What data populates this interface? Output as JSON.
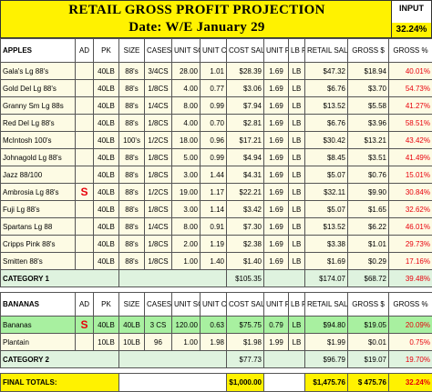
{
  "title": "RETAIL GROSS PROFIT PROJECTION",
  "date_line": "Date: W/E  January 29",
  "input": {
    "label": "INPUT",
    "value": "32.24%"
  },
  "columns": {
    "ad": "AD",
    "pk": "PK",
    "size": "SIZE",
    "cases": "CASES $1000",
    "unit_sold": "UNIT SOLD",
    "unit_cost": "UNIT COST",
    "cost_sales": "COST SALES",
    "unit_ret": "UNIT RET",
    "lb_ret": "LB RET",
    "retail_sales": "RETAIL SALES",
    "gross_dollar": "GROSS $",
    "gross_pct": "GROSS %"
  },
  "apples": {
    "section_label": "APPLES",
    "rows": [
      {
        "item": "Gala's Lg 88's",
        "ad": "",
        "pk": "40LB",
        "size": "88's",
        "cases": "3/4CS",
        "unit_sold": "28.00",
        "unit_cost": "1.01",
        "cost_sales": "$28.39",
        "unit_ret": "1.69",
        "lb_ret": "LB",
        "retail": "$47.32",
        "gross_d": "$18.94",
        "gross_p": "40.01%"
      },
      {
        "item": "Gold Del Lg 88's",
        "ad": "",
        "pk": "40LB",
        "size": "88's",
        "cases": "1/8CS",
        "unit_sold": "4.00",
        "unit_cost": "0.77",
        "cost_sales": "$3.06",
        "unit_ret": "1.69",
        "lb_ret": "LB",
        "retail": "$6.76",
        "gross_d": "$3.70",
        "gross_p": "54.73%"
      },
      {
        "item": "Granny Sm Lg 88s",
        "ad": "",
        "pk": "40LB",
        "size": "88's",
        "cases": "1/4CS",
        "unit_sold": "8.00",
        "unit_cost": "0.99",
        "cost_sales": "$7.94",
        "unit_ret": "1.69",
        "lb_ret": "LB",
        "retail": "$13.52",
        "gross_d": "$5.58",
        "gross_p": "41.27%"
      },
      {
        "item": "Red Del Lg 88's",
        "ad": "",
        "pk": "40LB",
        "size": "88's",
        "cases": "1/8CS",
        "unit_sold": "4.00",
        "unit_cost": "0.70",
        "cost_sales": "$2.81",
        "unit_ret": "1.69",
        "lb_ret": "LB",
        "retail": "$6.76",
        "gross_d": "$3.96",
        "gross_p": "58.51%"
      },
      {
        "item": "McIntosh 100's",
        "ad": "",
        "pk": "40LB",
        "size": "100's",
        "cases": "1/2CS",
        "unit_sold": "18.00",
        "unit_cost": "0.96",
        "cost_sales": "$17.21",
        "unit_ret": "1.69",
        "lb_ret": "LB",
        "retail": "$30.42",
        "gross_d": "$13.21",
        "gross_p": "43.42%"
      },
      {
        "item": "Johnagold Lg 88's",
        "ad": "",
        "pk": "40LB",
        "size": "88's",
        "cases": "1/8CS",
        "unit_sold": "5.00",
        "unit_cost": "0.99",
        "cost_sales": "$4.94",
        "unit_ret": "1.69",
        "lb_ret": "LB",
        "retail": "$8.45",
        "gross_d": "$3.51",
        "gross_p": "41.49%"
      },
      {
        "item": "Jazz 88/100",
        "ad": "",
        "pk": "40LB",
        "size": "88's",
        "cases": "1/8CS",
        "unit_sold": "3.00",
        "unit_cost": "1.44",
        "cost_sales": "$4.31",
        "unit_ret": "1.69",
        "lb_ret": "LB",
        "retail": "$5.07",
        "gross_d": "$0.76",
        "gross_p": "15.01%"
      },
      {
        "item": "Ambrosia Lg  88's",
        "ad": "S",
        "pk": "40LB",
        "size": "88's",
        "cases": "1/2CS",
        "unit_sold": "19.00",
        "unit_cost": "1.17",
        "cost_sales": "$22.21",
        "unit_ret": "1.69",
        "lb_ret": "LB",
        "retail": "$32.11",
        "gross_d": "$9.90",
        "gross_p": "30.84%"
      },
      {
        "item": "Fuji Lg 88's",
        "ad": "",
        "pk": "40LB",
        "size": "88's",
        "cases": "1/8CS",
        "unit_sold": "3.00",
        "unit_cost": "1.14",
        "cost_sales": "$3.42",
        "unit_ret": "1.69",
        "lb_ret": "LB",
        "retail": "$5.07",
        "gross_d": "$1.65",
        "gross_p": "32.62%"
      },
      {
        "item": "Spartans Lg  88",
        "ad": "",
        "pk": "40LB",
        "size": "88's",
        "cases": "1/4CS",
        "unit_sold": "8.00",
        "unit_cost": "0.91",
        "cost_sales": "$7.30",
        "unit_ret": "1.69",
        "lb_ret": "LB",
        "retail": "$13.52",
        "gross_d": "$6.22",
        "gross_p": "46.01%"
      },
      {
        "item": "Cripps Pink 88's",
        "ad": "",
        "pk": "40LB",
        "size": "88's",
        "cases": "1/8CS",
        "unit_sold": "2.00",
        "unit_cost": "1.19",
        "cost_sales": "$2.38",
        "unit_ret": "1.69",
        "lb_ret": "LB",
        "retail": "$3.38",
        "gross_d": "$1.01",
        "gross_p": "29.73%"
      },
      {
        "item": "Smitten 88's",
        "ad": "",
        "pk": "40LB",
        "size": "88's",
        "cases": "1/8CS",
        "unit_sold": "1.00",
        "unit_cost": "1.40",
        "cost_sales": "$1.40",
        "unit_ret": "1.69",
        "lb_ret": "LB",
        "retail": "$1.69",
        "gross_d": "$0.29",
        "gross_p": "17.16%"
      }
    ],
    "total": {
      "label": "CATEGORY 1",
      "cost_sales": "$105.35",
      "retail": "$174.07",
      "gross_d": "$68.72",
      "gross_p": "39.48%"
    }
  },
  "bananas": {
    "section_label": "BANANAS",
    "rows": [
      {
        "item": "Bananas",
        "ad": "S",
        "pk": "40LB",
        "size": "40LB",
        "cases": "3 CS",
        "unit_sold": "120.00",
        "unit_cost": "0.63",
        "cost_sales": "$75.75",
        "unit_ret": "0.79",
        "lb_ret": "LB",
        "retail": "$94.80",
        "gross_d": "$19.05",
        "gross_p": "20.09%"
      },
      {
        "item": "Plantain",
        "ad": "",
        "pk": "10LB",
        "size": "10LB",
        "cases": "96",
        "unit_sold": "1.00",
        "unit_cost": "1.98",
        "cost_sales": "$1.98",
        "unit_ret": "1.99",
        "lb_ret": "LB",
        "retail": "$1.99",
        "gross_d": "$0.01",
        "gross_p": "0.75%"
      }
    ],
    "total": {
      "label": "CATEGORY 2",
      "cost_sales": "$77.73",
      "retail": "$96.79",
      "gross_d": "$19.07",
      "gross_p": "19.70%"
    }
  },
  "final": {
    "label": "FINAL TOTALS:",
    "cost_sales": "$1,000.00",
    "retail": "$1,475.76",
    "gross_d": "$  475.76",
    "gross_p": "32.24%"
  }
}
